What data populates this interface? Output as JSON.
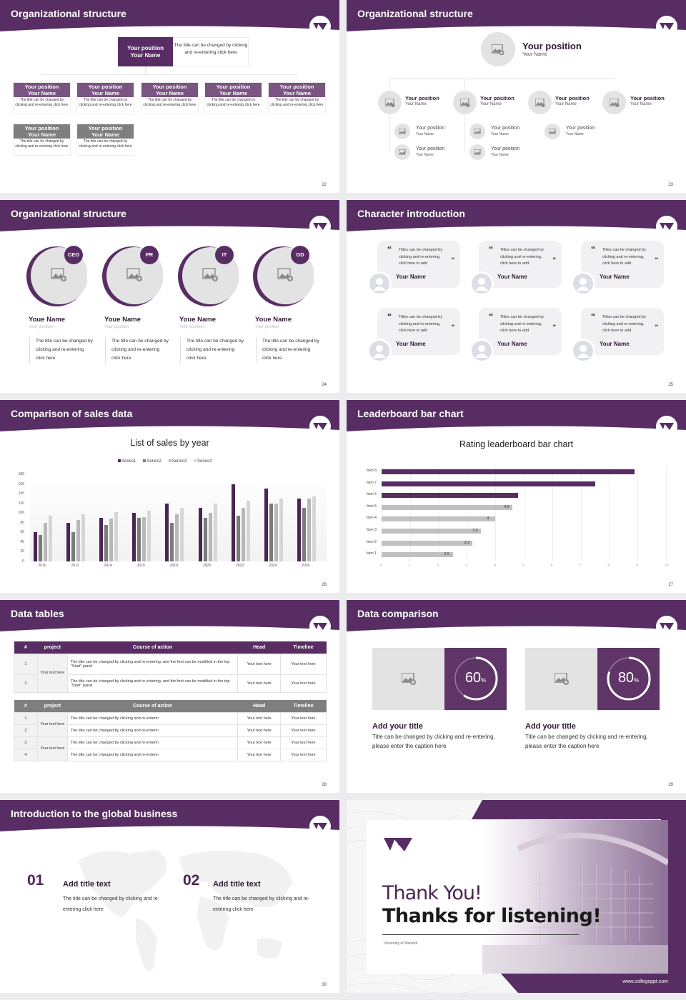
{
  "colors": {
    "primary": "#582d64",
    "light_purple": "#7a5582",
    "gray": "#7f7f7f",
    "placeholder_gray": "#e4e3e4"
  },
  "slides": [
    {
      "title": "Organizational structure",
      "page": "22",
      "top": {
        "position": "Your position",
        "name": "Your Name",
        "desc": "The title can be changed by clicking and re-entering click here"
      },
      "row1": [
        {
          "position": "Your position",
          "name": "Your Name",
          "desc": "The title can be changed by clicking and re-entering click here"
        },
        {
          "position": "Your position",
          "name": "Your Name",
          "desc": "The title can be changed by clicking and re-entering click here"
        },
        {
          "position": "Your position",
          "name": "Your Name",
          "desc": "The title can be changed by clicking and re-entering click here"
        },
        {
          "position": "Your position",
          "name": "Your Name",
          "desc": "The title can be changed by clicking and re-entering click here"
        },
        {
          "position": "Your position",
          "name": "Your Name",
          "desc": "The title can be changed by clicking and re-entering click here"
        }
      ],
      "row2": [
        {
          "position": "Your position",
          "name": "Your Name",
          "desc": "The title can be changed by clicking and re-entering click here"
        },
        {
          "position": "Your position",
          "name": "Your Name",
          "desc": "The title can be changed by clicking and re-entering click here"
        }
      ]
    },
    {
      "title": "Organizational structure",
      "page": "23",
      "top": {
        "position": "Your position",
        "name": "Your Name"
      },
      "level1": [
        {
          "position": "Your position",
          "name": "Your Name"
        },
        {
          "position": "Your position",
          "name": "Your Name"
        },
        {
          "position": "Your position",
          "name": "Your Name"
        },
        {
          "position": "Your position",
          "name": "Your Name"
        }
      ],
      "level2": [
        {
          "position": "Your position",
          "name": "Your Name"
        },
        {
          "position": "Your position",
          "name": "Your Name"
        },
        {
          "position": "Your position",
          "name": "Your Name"
        },
        {
          "position": "Your position",
          "name": "Your Name"
        },
        {
          "position": "Your position",
          "name": "Your Name"
        }
      ]
    },
    {
      "title": "Organizational structure",
      "page": "24",
      "people": [
        {
          "tag": "CEO",
          "name": "Youe Name",
          "position": "Your position",
          "desc": "The title can be changed by clicking and re-entering click here"
        },
        {
          "tag": "PR",
          "name": "Youe Name",
          "position": "Your position",
          "desc": "The title can be changed by clicking and re-entering click here"
        },
        {
          "tag": "IT",
          "name": "Youe Name",
          "position": "Your position",
          "desc": "The title can be changed by clicking and re-entering click here"
        },
        {
          "tag": "GD",
          "name": "Youe Name",
          "position": "Your position",
          "desc": "The title can be changed by clicking and re-entering click here"
        }
      ]
    },
    {
      "title": "Character introduction",
      "page": "25",
      "cards": [
        {
          "quote": "Titles can be changed by clicking and re-entering, click here to add",
          "name": "Your Name"
        },
        {
          "quote": "Titles can be changed by clicking and re-entering, click here to add",
          "name": "Your Name"
        },
        {
          "quote": "Titles can be changed by clicking and re-entering, click here to add",
          "name": "Your Name"
        },
        {
          "quote": "Titles can be changed by clicking and re-entering, click here to add",
          "name": "Your Name"
        },
        {
          "quote": "Titles can be changed by clicking and re-entering, click here to add",
          "name": "Your Name"
        },
        {
          "quote": "Titles can be changed by clicking and re-entering, click here to add",
          "name": "Your Name"
        }
      ],
      "quote_open": "“",
      "quote_close": "”"
    },
    {
      "title": "Comparison of sales data",
      "page": "26",
      "chart_title": "List of sales by year",
      "legend": [
        "Series1",
        "Series2",
        "Series3",
        "Series4"
      ],
      "y_ticks": [
        "180",
        "160",
        "140",
        "120",
        "100",
        "80",
        "60",
        "40",
        "20",
        "0"
      ],
      "x_ticks": [
        "2010",
        "2012",
        "2014",
        "2016",
        "2018",
        "2020",
        "2022",
        "2024",
        "2026"
      ]
    },
    {
      "title": "Leaderboard bar chart",
      "page": "27",
      "chart_title": "Rating leaderboard bar chart",
      "items": [
        "Item 8",
        "Item 7",
        "Item 6",
        "Item 5",
        "Item 4",
        "Item 3",
        "Item 2",
        "Item 1"
      ],
      "value_labels": [
        "",
        "",
        "",
        "4.6",
        "4",
        "3.5",
        "3.2",
        "2.5"
      ],
      "x_ticks": [
        "0",
        "1",
        "2",
        "3",
        "4",
        "5",
        "6",
        "7",
        "8",
        "9",
        "10"
      ]
    },
    {
      "title": "Data tables",
      "page": "28",
      "headers": [
        "#",
        "project",
        "Course of action",
        "Head",
        "Timeline"
      ],
      "table1": {
        "project": "Your text here",
        "rows": [
          {
            "n": "1",
            "action": "The title can be changed by clicking and re-entering, and the font can be modified in the top \"Start\" panel",
            "head": "Your text here",
            "timeline": "Your text here"
          },
          {
            "n": "2",
            "action": "The title can be changed by clicking and re-entering, and the font can be modified in the top \"Start\" panel",
            "head": "Your text here",
            "timeline": "Your text here"
          }
        ]
      },
      "table2": {
        "projects": [
          "Your text here",
          "Your text here"
        ],
        "rows": [
          {
            "n": "1",
            "action": "The title can be changed by clicking and re-enterin",
            "head": "Your text here",
            "timeline": "Your text here"
          },
          {
            "n": "2",
            "action": "The title can be changed by clicking and re-enterin",
            "head": "Your text here",
            "timeline": "Your text here"
          },
          {
            "n": "3",
            "action": "The title can be changed by clicking and re-enterin",
            "head": "Your text here",
            "timeline": "Your text here"
          },
          {
            "n": "4",
            "action": "The title can be changed by clicking and re-enterin",
            "head": "Your text here",
            "timeline": "Your text here"
          }
        ]
      }
    },
    {
      "title": "Data comparison",
      "page": "29",
      "items": [
        {
          "percent": "60",
          "unit": "%",
          "title": "Add your title",
          "desc": "Title can be changed by clicking and re-entering, please enter the caption here"
        },
        {
          "percent": "80",
          "unit": "%",
          "title": "Add your title",
          "desc": "Title can be changed by clicking and re-entering, please enter the caption here"
        }
      ]
    },
    {
      "title": "Introduction to the global business",
      "page": "30",
      "items": [
        {
          "num": "01",
          "title": "Add title text",
          "desc": "The title can be changed by clicking and re-entering click here"
        },
        {
          "num": "02",
          "title": "Add title text",
          "desc": "The title can be changed by clicking and re-entering click here"
        }
      ]
    },
    {
      "line1": "Thank You!",
      "line2": "Thanks for listening!",
      "university": "University of Warwick",
      "url": "www.collegeppt.com"
    }
  ],
  "chart_data": [
    {
      "type": "bar",
      "title": "List of sales by year",
      "categories": [
        "2010",
        "2012",
        "2014",
        "2016",
        "2018",
        "2020",
        "2022",
        "2024",
        "2026"
      ],
      "series": [
        {
          "name": "Series1",
          "values": [
            60,
            80,
            90,
            100,
            120,
            110,
            160,
            150,
            130
          ]
        },
        {
          "name": "Series2",
          "values": [
            55,
            60,
            75,
            90,
            80,
            90,
            95,
            120,
            110
          ]
        },
        {
          "name": "Series3",
          "values": [
            80,
            85,
            88,
            92,
            98,
            100,
            110,
            120,
            130
          ]
        },
        {
          "name": "Series4",
          "values": [
            95,
            98,
            102,
            105,
            110,
            120,
            125,
            130,
            135
          ]
        }
      ],
      "ylim": [
        0,
        180
      ],
      "grid": false,
      "legend_position": "top"
    },
    {
      "type": "bar",
      "orientation": "horizontal",
      "title": "Rating leaderboard bar chart",
      "categories": [
        "Item 1",
        "Item 2",
        "Item 3",
        "Item 4",
        "Item 5",
        "Item 6",
        "Item 7",
        "Item 8"
      ],
      "values": [
        2.5,
        3.2,
        3.5,
        4,
        4.6,
        4.8,
        7.5,
        8.9
      ],
      "xlim": [
        0,
        10
      ],
      "grid": true
    }
  ]
}
